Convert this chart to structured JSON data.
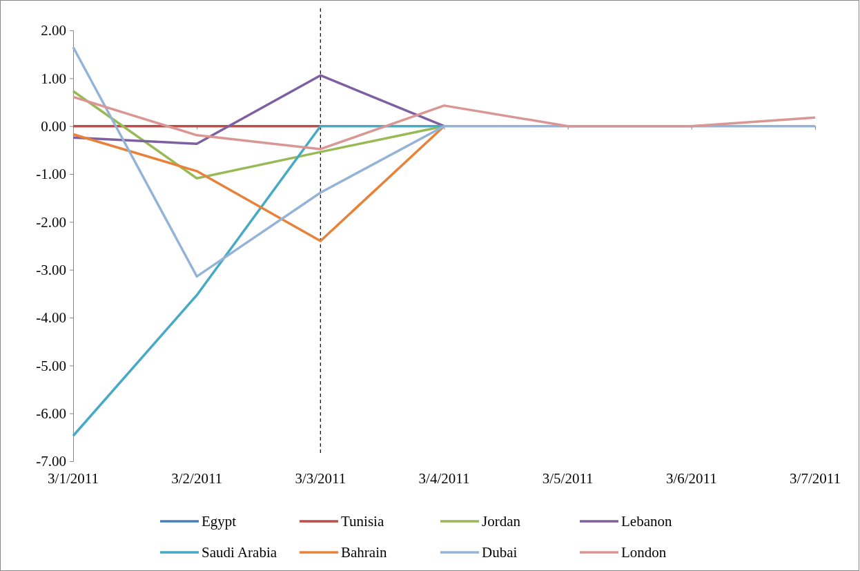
{
  "chart_data": {
    "type": "line",
    "categories": [
      "3/1/2011",
      "3/2/2011",
      "3/3/2011",
      "3/4/2011",
      "3/5/2011",
      "3/6/2011",
      "3/7/2011"
    ],
    "series": [
      {
        "name": "Egypt",
        "color": "#4a7ebb",
        "values": [
          null,
          null,
          null,
          null,
          null,
          null,
          null
        ]
      },
      {
        "name": "Tunisia",
        "color": "#be4b48",
        "values": [
          0,
          0,
          0,
          null,
          null,
          null,
          null
        ]
      },
      {
        "name": "Jordan",
        "color": "#98b954",
        "values": [
          0.73,
          -1.09,
          -0.54,
          0,
          null,
          null,
          null
        ]
      },
      {
        "name": "Lebanon",
        "color": "#7d60a0",
        "values": [
          -0.24,
          -0.37,
          1.06,
          0,
          null,
          null,
          null
        ]
      },
      {
        "name": "Saudi Arabia",
        "color": "#46aac5",
        "values": [
          -6.47,
          -3.53,
          0,
          0,
          null,
          null,
          null
        ]
      },
      {
        "name": "Bahrain",
        "color": "#e8823a",
        "values": [
          -0.17,
          -0.94,
          -2.4,
          0,
          null,
          null,
          null
        ]
      },
      {
        "name": "Dubai",
        "color": "#95b3d7",
        "values": [
          1.65,
          -3.14,
          -1.39,
          0,
          0,
          0,
          0
        ]
      },
      {
        "name": "London",
        "color": "#d99694",
        "values": [
          0.61,
          -0.19,
          -0.48,
          0.43,
          0,
          0,
          0.18
        ]
      }
    ],
    "ylim": [
      -7,
      2
    ],
    "yticks": [
      {
        "value": 2,
        "label": "2.00"
      },
      {
        "value": 1,
        "label": "1.00"
      },
      {
        "value": 0,
        "label": "0.00"
      },
      {
        "value": -1,
        "label": "-1.00"
      },
      {
        "value": -2,
        "label": "-2.00"
      },
      {
        "value": -3,
        "label": "-3.00"
      },
      {
        "value": -4,
        "label": "-4.00"
      },
      {
        "value": -5,
        "label": "-5.00"
      },
      {
        "value": -6,
        "label": "-6.00"
      },
      {
        "value": -7,
        "label": "-7.00"
      }
    ],
    "ref_lines": [
      {
        "axis": "x",
        "value": "3/3/2011",
        "line_style": "dashed",
        "color": "#000000"
      }
    ],
    "grid": false,
    "legend": "bottom",
    "marker": "none",
    "line_style": "solid"
  }
}
